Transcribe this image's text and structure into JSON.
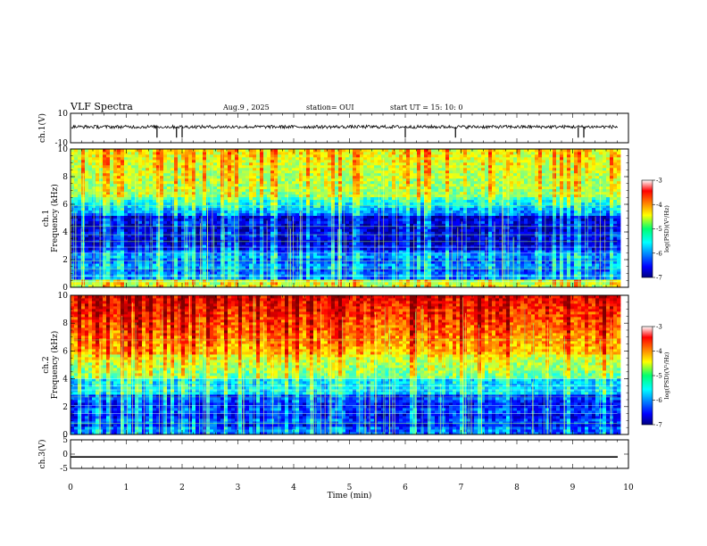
{
  "header": {
    "title": "VLF Spectra",
    "date": "Aug.9 , 2025",
    "station": "station= OUI",
    "start_time": "start UT = 15: 10: 0"
  },
  "chart_data": [
    {
      "type": "line",
      "name": "ch1-waveform",
      "ylabel": "ch.1(V)",
      "ylim": [
        -10,
        10
      ],
      "yticks": [
        "10",
        "-10"
      ],
      "xlim": [
        0,
        10
      ],
      "baseline": 0.8,
      "spike_times_min": [
        1.55,
        1.9,
        2.0,
        6.0,
        6.9,
        9.1,
        9.2
      ]
    },
    {
      "type": "heatmap",
      "name": "ch1-spectrogram",
      "ylabel": "ch.1 Frequency (kHz)",
      "ylabel_lines": [
        "ch.1",
        "Frequency (kHz)"
      ],
      "ylim": [
        0,
        10
      ],
      "yticks": [
        "0",
        "2",
        "4",
        "6",
        "8",
        "10"
      ],
      "xlim": [
        0,
        9.8
      ],
      "colorbar": {
        "label": "log(PSD)(V²/Hz)",
        "min": -7,
        "max": -3,
        "ticks": [
          "-3",
          "-4",
          "-5",
          "-6",
          "-7"
        ]
      }
    },
    {
      "type": "heatmap",
      "name": "ch2-spectrogram",
      "ylabel": "ch.2 Frequency (kHz)",
      "ylabel_lines": [
        "ch.2",
        "Frequency (kHz)"
      ],
      "ylim": [
        0,
        10
      ],
      "yticks": [
        "0",
        "2",
        "4",
        "6",
        "8",
        "10"
      ],
      "xlim": [
        0,
        9.8
      ],
      "colorbar": {
        "label": "log(PSD)(V²/Hz)",
        "min": -7,
        "max": -3,
        "ticks": [
          "-3",
          "-4",
          "-5",
          "-6",
          "-7"
        ]
      }
    },
    {
      "type": "line",
      "name": "ch3-waveform",
      "ylabel": "ch.3(V)",
      "ylim": [
        -5,
        5
      ],
      "yticks": [
        "5",
        "0",
        "-5"
      ],
      "xlim": [
        0,
        10
      ],
      "baseline": -1
    }
  ],
  "xaxis": {
    "label": "Time (min)",
    "ticks": [
      "0",
      "1",
      "2",
      "3",
      "4",
      "5",
      "6",
      "7",
      "8",
      "9",
      "10"
    ]
  }
}
